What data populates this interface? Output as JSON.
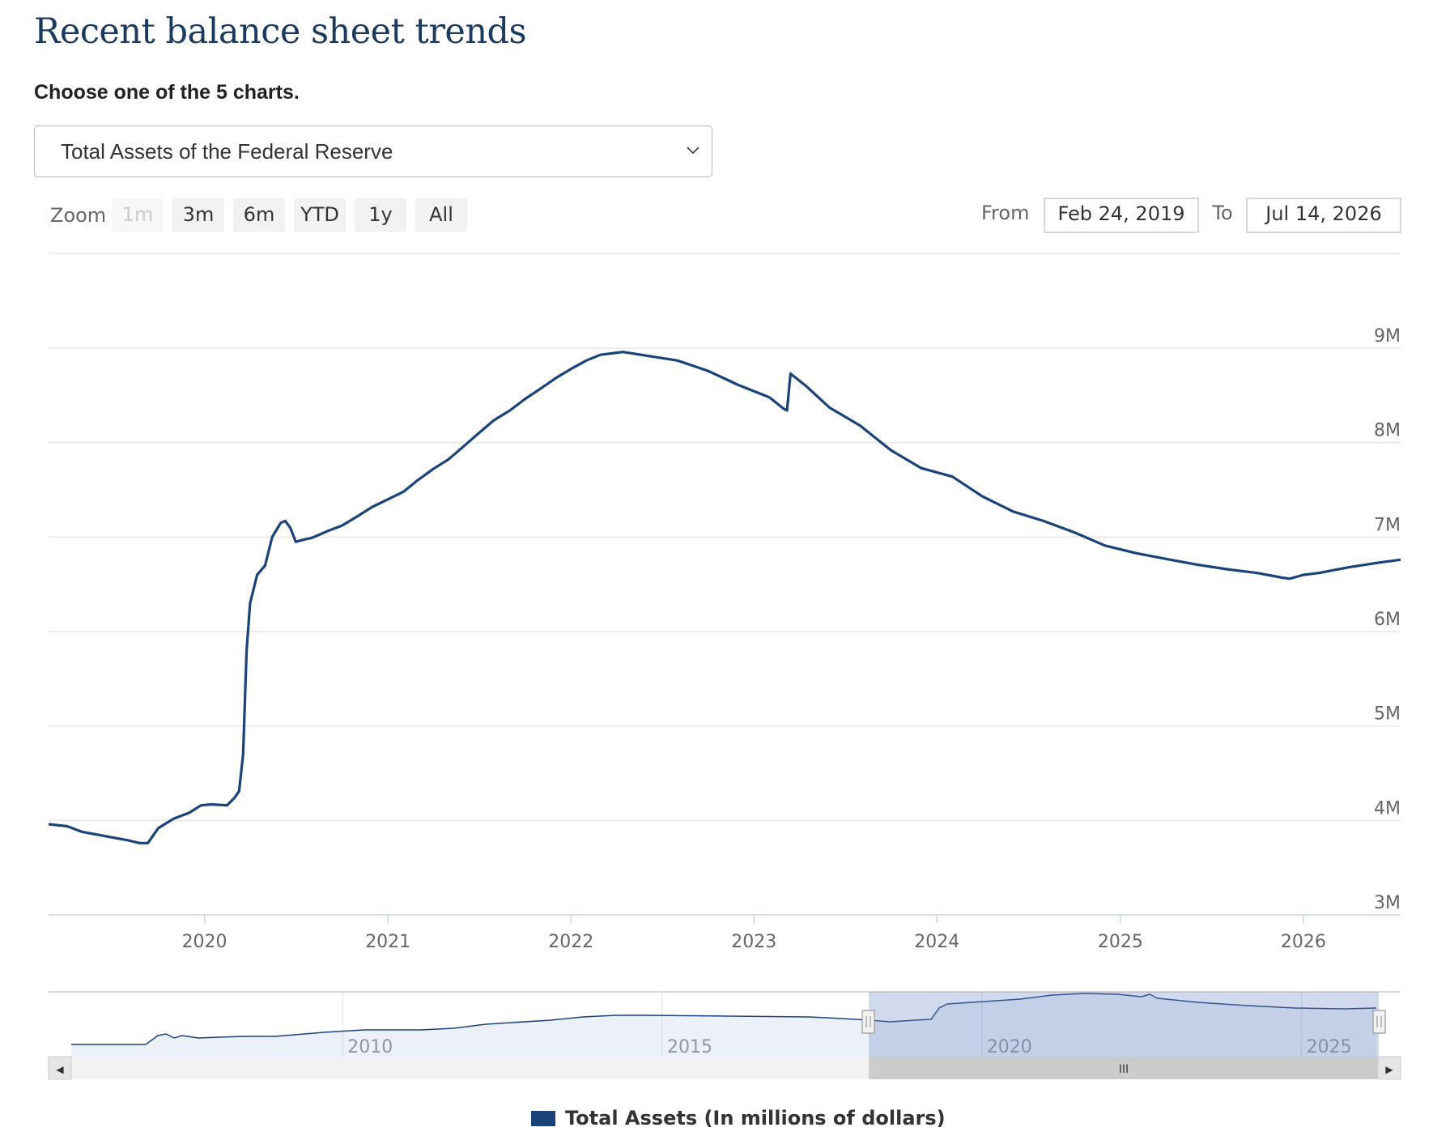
{
  "header": {
    "title": "Recent balance sheet trends",
    "subtitle": "Choose one of the 5 charts."
  },
  "selector": {
    "value": "Total Assets of the Federal Reserve",
    "icon": "chevron-down-icon"
  },
  "range_selector": {
    "zoom_label": "Zoom",
    "buttons": [
      {
        "label": "1m",
        "state": "disabled"
      },
      {
        "label": "3m",
        "state": "normal"
      },
      {
        "label": "6m",
        "state": "normal"
      },
      {
        "label": "YTD",
        "state": "normal"
      },
      {
        "label": "1y",
        "state": "normal"
      },
      {
        "label": "All",
        "state": "normal"
      }
    ],
    "from_label": "From",
    "from_value": "Feb 24, 2019",
    "to_label": "To",
    "to_value": "Jul 14, 2026"
  },
  "navigator": {
    "tick_labels": [
      "2010",
      "2015",
      "2020",
      "2025"
    ],
    "scrollbar_grip": "III",
    "left_arrow": "◀",
    "right_arrow": "▶"
  },
  "colors": {
    "series": "#1b4279",
    "title": "#1c3a5e",
    "grid": "#e6e6e6",
    "navigator_fill": "rgba(102,133,194,0.3)"
  },
  "chart_data": {
    "type": "line",
    "title": "",
    "xlabel": "",
    "ylabel": "",
    "x_tick_labels": [
      "2020",
      "2021",
      "2022",
      "2023",
      "2024",
      "2025",
      "2026"
    ],
    "y_tick_labels": [
      "3M",
      "4M",
      "5M",
      "6M",
      "7M",
      "8M",
      "9M"
    ],
    "ylim": [
      3000000,
      9000000
    ],
    "xlim": [
      "2019-02-24",
      "2026-07-14"
    ],
    "grid": true,
    "legend": "bottom-center",
    "series": [
      {
        "name": "Total Assets (In millions of dollars)",
        "x": [
          "2019-02-24",
          "2019-04-01",
          "2019-05-01",
          "2019-06-01",
          "2019-07-01",
          "2019-08-01",
          "2019-08-25",
          "2019-09-10",
          "2019-10-01",
          "2019-11-01",
          "2019-12-01",
          "2019-12-25",
          "2020-01-15",
          "2020-02-15",
          "2020-03-01",
          "2020-03-10",
          "2020-03-18",
          "2020-03-25",
          "2020-04-01",
          "2020-04-15",
          "2020-05-01",
          "2020-05-15",
          "2020-06-01",
          "2020-06-10",
          "2020-06-20",
          "2020-07-01",
          "2020-07-15",
          "2020-08-01",
          "2020-08-15",
          "2020-09-01",
          "2020-10-01",
          "2020-11-01",
          "2020-12-01",
          "2021-01-01",
          "2021-02-01",
          "2021-03-01",
          "2021-04-01",
          "2021-05-01",
          "2021-06-01",
          "2021-07-01",
          "2021-08-01",
          "2021-09-01",
          "2021-10-01",
          "2021-11-01",
          "2021-12-01",
          "2022-01-01",
          "2022-02-01",
          "2022-03-01",
          "2022-04-15",
          "2022-06-01",
          "2022-08-01",
          "2022-10-01",
          "2022-12-01",
          "2023-02-01",
          "2023-03-01",
          "2023-03-08",
          "2023-03-15",
          "2023-03-22",
          "2023-04-15",
          "2023-06-01",
          "2023-08-01",
          "2023-10-01",
          "2023-12-01",
          "2024-02-01",
          "2024-04-01",
          "2024-06-01",
          "2024-08-01",
          "2024-10-01",
          "2024-12-01",
          "2025-02-01",
          "2025-04-01",
          "2025-06-01",
          "2025-08-01",
          "2025-10-01",
          "2025-11-20",
          "2025-12-05",
          "2026-01-01",
          "2026-02-01",
          "2026-04-01",
          "2026-06-01",
          "2026-07-14"
        ],
        "y": [
          3960000,
          3940000,
          3880000,
          3850000,
          3820000,
          3790000,
          3760000,
          3760000,
          3920000,
          4020000,
          4080000,
          4160000,
          4170000,
          4160000,
          4240000,
          4310000,
          4700000,
          5800000,
          6300000,
          6600000,
          6700000,
          7000000,
          7150000,
          7170000,
          7100000,
          6950000,
          6970000,
          6990000,
          7020000,
          7060000,
          7120000,
          7220000,
          7320000,
          7400000,
          7480000,
          7600000,
          7720000,
          7820000,
          7960000,
          8100000,
          8240000,
          8340000,
          8460000,
          8570000,
          8680000,
          8780000,
          8870000,
          8930000,
          8960000,
          8920000,
          8870000,
          8760000,
          8610000,
          8480000,
          8360000,
          8340000,
          8730000,
          8700000,
          8600000,
          8370000,
          8180000,
          7920000,
          7730000,
          7640000,
          7430000,
          7270000,
          7170000,
          7050000,
          6910000,
          6830000,
          6770000,
          6710000,
          6660000,
          6620000,
          6570000,
          6560000,
          6600000,
          6620000,
          6680000,
          6730000,
          6760000
        ]
      }
    ]
  }
}
